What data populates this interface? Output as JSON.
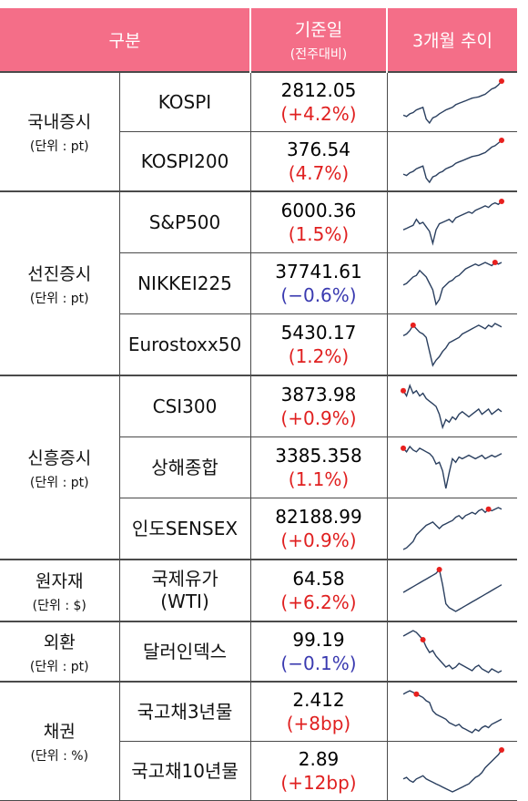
{
  "header": {
    "category": "구분",
    "value_title": "기준일",
    "value_sub": "(전주대비)",
    "trend": "3개월 추이"
  },
  "groups": [
    {
      "name": "국내증시",
      "unit": "(단위 : pt)"
    },
    {
      "name": "선진증시",
      "unit": "(단위 : pt)"
    },
    {
      "name": "신흥증시",
      "unit": "(단위 : pt)"
    },
    {
      "name": "원자재",
      "unit": "(단위 : $)"
    },
    {
      "name": "외환",
      "unit": "(단위 : pt)"
    },
    {
      "name": "채권",
      "unit": "(단위 : %)"
    }
  ],
  "rows": [
    {
      "name": "KOSPI",
      "value": "2812.05",
      "change": "(+4.2%)",
      "dir": "up"
    },
    {
      "name": "KOSPI200",
      "value": "376.54",
      "change": "(4.7%)",
      "dir": "up"
    },
    {
      "name": "S&P500",
      "value": "6000.36",
      "change": "(1.5%)",
      "dir": "up"
    },
    {
      "name": "NIKKEI225",
      "value": "37741.61",
      "change": "(−0.6%)",
      "dir": "down"
    },
    {
      "name": "Eurostoxx50",
      "value": "5430.17",
      "change": "(1.2%)",
      "dir": "up"
    },
    {
      "name": "CSI300",
      "value": "3873.98",
      "change": "(+0.9%)",
      "dir": "up"
    },
    {
      "name": "상해종합",
      "value": "3385.358",
      "change": "(1.1%)",
      "dir": "up"
    },
    {
      "name": "인도SENSEX",
      "value": "82188.99",
      "change": "(+0.9%)",
      "dir": "up"
    },
    {
      "name": "국제유가\n(WTI)",
      "value": "64.58",
      "change": "(+6.2%)",
      "dir": "up"
    },
    {
      "name": "달러인덱스",
      "value": "99.19",
      "change": "(−0.1%)",
      "dir": "down"
    },
    {
      "name": "국고채3년물",
      "value": "2.412",
      "change": "(+8bp)",
      "dir": "up"
    },
    {
      "name": "국고채10년물",
      "value": "2.89",
      "change": "(+12bp)",
      "dir": "up"
    }
  ],
  "colors": {
    "header_bg": "#f46e88",
    "up": "#e02020",
    "down": "#3a3ab0",
    "line": "#2a3f5f",
    "marker": "#e8201e"
  },
  "sparklines": [
    {
      "values": [
        60,
        62,
        58,
        56,
        52,
        50,
        48,
        66,
        72,
        64,
        62,
        58,
        55,
        52,
        50,
        48,
        44,
        42,
        40,
        38,
        36,
        34,
        33,
        32,
        30,
        28,
        24,
        20,
        18,
        14,
        8
      ],
      "marker": 30
    },
    {
      "values": [
        58,
        60,
        56,
        54,
        50,
        48,
        46,
        64,
        70,
        62,
        60,
        56,
        54,
        50,
        48,
        46,
        42,
        40,
        38,
        36,
        34,
        32,
        31,
        30,
        28,
        26,
        22,
        18,
        16,
        12,
        8
      ],
      "marker": 30
    },
    {
      "values": [
        44,
        42,
        40,
        38,
        30,
        36,
        34,
        40,
        46,
        62,
        44,
        36,
        34,
        32,
        30,
        34,
        28,
        26,
        24,
        22,
        20,
        22,
        18,
        16,
        14,
        12,
        14,
        10,
        8,
        10,
        6
      ],
      "marker": 30
    },
    {
      "values": [
        40,
        38,
        34,
        30,
        28,
        22,
        26,
        30,
        38,
        46,
        64,
        58,
        44,
        40,
        36,
        34,
        30,
        28,
        24,
        20,
        18,
        16,
        14,
        16,
        14,
        12,
        14,
        16,
        12,
        14,
        12
      ],
      "marker": 28
    },
    {
      "values": [
        22,
        20,
        16,
        10,
        14,
        18,
        20,
        24,
        40,
        56,
        50,
        46,
        40,
        36,
        30,
        28,
        26,
        24,
        20,
        18,
        16,
        14,
        12,
        10,
        12,
        14,
        10,
        12,
        8,
        10,
        12
      ],
      "marker": 3
    },
    {
      "values": [
        12,
        16,
        8,
        14,
        12,
        16,
        14,
        18,
        20,
        22,
        24,
        30,
        40,
        34,
        36,
        32,
        34,
        30,
        28,
        30,
        32,
        30,
        28,
        26,
        30,
        28,
        26,
        30,
        28,
        26,
        28
      ],
      "marker": 0
    },
    {
      "values": [
        10,
        14,
        8,
        12,
        14,
        10,
        12,
        14,
        16,
        20,
        28,
        26,
        36,
        56,
        38,
        22,
        26,
        20,
        22,
        20,
        18,
        20,
        22,
        20,
        18,
        22,
        20,
        18,
        20,
        18,
        16
      ],
      "marker": 0
    },
    {
      "values": [
        60,
        58,
        54,
        50,
        42,
        38,
        34,
        30,
        28,
        26,
        30,
        34,
        30,
        28,
        26,
        24,
        20,
        18,
        22,
        18,
        16,
        14,
        16,
        12,
        10,
        14,
        10,
        12,
        10,
        8,
        10
      ],
      "marker": 26
    },
    {
      "values": [
        28,
        26,
        24,
        22,
        20,
        18,
        16,
        14,
        12,
        10,
        8,
        4,
        20,
        40,
        44,
        46,
        48,
        46,
        44,
        42,
        40,
        38,
        36,
        34,
        32,
        30,
        28,
        26,
        24,
        22,
        20
      ],
      "marker": 11
    },
    {
      "values": [
        14,
        12,
        10,
        8,
        10,
        14,
        18,
        26,
        32,
        30,
        36,
        40,
        44,
        48,
        46,
        50,
        48,
        44,
        46,
        48,
        50,
        52,
        48,
        46,
        50,
        52,
        54,
        50,
        52,
        54,
        52
      ],
      "marker": 6
    },
    {
      "values": [
        10,
        8,
        6,
        8,
        10,
        12,
        14,
        18,
        20,
        30,
        34,
        36,
        38,
        40,
        44,
        46,
        48,
        46,
        50,
        52,
        54,
        56,
        52,
        54,
        50,
        48,
        50,
        46,
        44,
        42,
        40
      ],
      "marker": 4
    },
    {
      "values": [
        44,
        42,
        46,
        48,
        44,
        42,
        40,
        44,
        46,
        48,
        50,
        52,
        54,
        56,
        58,
        60,
        58,
        56,
        54,
        52,
        50,
        46,
        42,
        40,
        36,
        30,
        26,
        22,
        18,
        14,
        8
      ],
      "marker": 30
    }
  ]
}
